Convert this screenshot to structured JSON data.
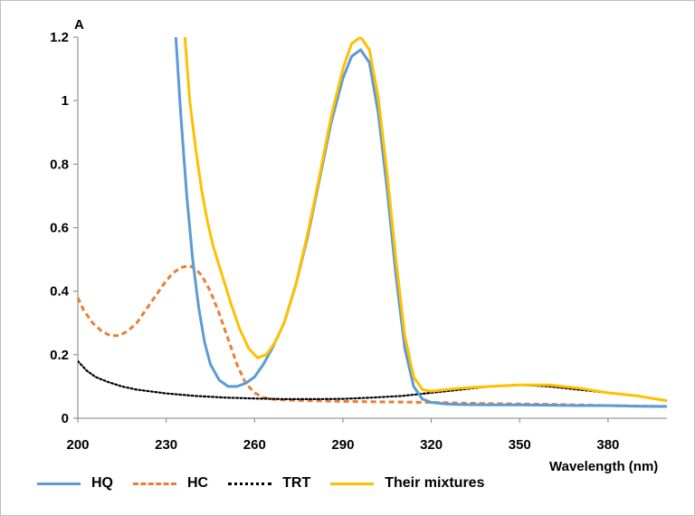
{
  "chart_data": {
    "type": "line",
    "title": "",
    "xlabel": "Wavelength (nm)",
    "ylabel": "A",
    "xlim": [
      200,
      400
    ],
    "ylim": [
      0,
      1.2
    ],
    "xticks": [
      "200",
      "230",
      "260",
      "290",
      "320",
      "350",
      "380"
    ],
    "yticks": [
      "0",
      "0.2",
      "0.4",
      "0.6",
      "0.8",
      "1",
      "1.2"
    ],
    "legend_position": "bottom",
    "grid": false,
    "series": [
      {
        "name": "HQ",
        "color": "#5b9bd5",
        "dash": "solid",
        "x": [
          233,
          235,
          237,
          239,
          241,
          243,
          245,
          248,
          251,
          254,
          257,
          260,
          263,
          266,
          270,
          274,
          278,
          282,
          286,
          290,
          293,
          296,
          299,
          302,
          305,
          308,
          311,
          314,
          317,
          320,
          325,
          330,
          340,
          350,
          360,
          370,
          380,
          390,
          400
        ],
        "y": [
          1.24,
          0.95,
          0.7,
          0.5,
          0.35,
          0.24,
          0.17,
          0.12,
          0.1,
          0.1,
          0.11,
          0.13,
          0.17,
          0.22,
          0.3,
          0.42,
          0.57,
          0.75,
          0.93,
          1.07,
          1.14,
          1.16,
          1.12,
          0.96,
          0.72,
          0.45,
          0.22,
          0.1,
          0.06,
          0.05,
          0.045,
          0.043,
          0.042,
          0.042,
          0.041,
          0.04,
          0.04,
          0.038,
          0.037
        ]
      },
      {
        "name": "HC",
        "color": "#ed7d31",
        "dash": "dashed",
        "x": [
          200,
          202,
          205,
          208,
          211,
          214,
          217,
          220,
          223,
          226,
          229,
          232,
          235,
          238,
          240,
          242,
          245,
          248,
          251,
          254,
          257,
          260,
          263,
          266,
          270,
          275,
          280,
          290,
          300,
          320,
          340,
          360,
          380,
          400
        ],
        "y": [
          0.38,
          0.34,
          0.3,
          0.275,
          0.26,
          0.26,
          0.275,
          0.3,
          0.34,
          0.38,
          0.42,
          0.455,
          0.475,
          0.48,
          0.47,
          0.45,
          0.4,
          0.33,
          0.25,
          0.17,
          0.11,
          0.08,
          0.065,
          0.06,
          0.058,
          0.056,
          0.055,
          0.053,
          0.052,
          0.05,
          0.046,
          0.044,
          0.04,
          0.037
        ]
      },
      {
        "name": "TRT",
        "color": "#000000",
        "dash": "dotted",
        "x": [
          200,
          203,
          206,
          210,
          215,
          220,
          230,
          240,
          250,
          260,
          270,
          280,
          290,
          300,
          310,
          320,
          330,
          340,
          350,
          360,
          370,
          380,
          390,
          400
        ],
        "y": [
          0.18,
          0.15,
          0.13,
          0.115,
          0.1,
          0.09,
          0.078,
          0.07,
          0.065,
          0.062,
          0.06,
          0.06,
          0.061,
          0.065,
          0.07,
          0.08,
          0.09,
          0.1,
          0.105,
          0.1,
          0.09,
          0.08,
          0.07,
          0.055
        ]
      },
      {
        "name": "Their mixtures",
        "color": "#ffc000",
        "dash": "solid",
        "x": [
          236,
          238,
          240,
          242,
          244,
          246,
          249,
          252,
          255,
          258,
          261,
          264,
          267,
          270,
          274,
          278,
          282,
          286,
          290,
          293,
          296,
          299,
          302,
          305,
          308,
          311,
          314,
          317,
          320,
          325,
          330,
          340,
          350,
          360,
          370,
          380,
          390,
          400
        ],
        "y": [
          1.24,
          1.0,
          0.85,
          0.72,
          0.62,
          0.54,
          0.45,
          0.36,
          0.28,
          0.22,
          0.19,
          0.2,
          0.24,
          0.3,
          0.42,
          0.58,
          0.76,
          0.95,
          1.1,
          1.18,
          1.2,
          1.16,
          1.01,
          0.77,
          0.5,
          0.26,
          0.13,
          0.09,
          0.085,
          0.09,
          0.095,
          0.1,
          0.105,
          0.105,
          0.095,
          0.08,
          0.07,
          0.055
        ]
      }
    ]
  }
}
